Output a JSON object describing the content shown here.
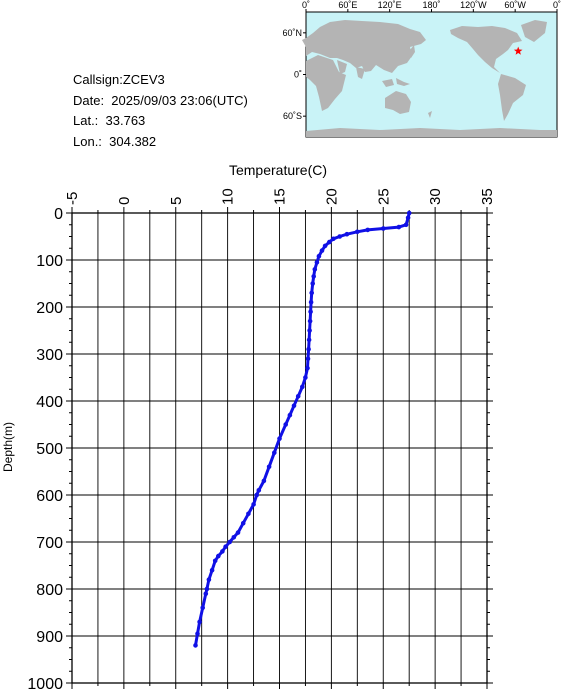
{
  "info": {
    "callsign": "Callsign:ZCEV3",
    "date": "Date:  2025/09/03 23:06(UTC)",
    "lat": "Lat.:  33.763",
    "lon": "Lon.:  304.382"
  },
  "map": {
    "top_ticks": [
      "0˚",
      "60˚E",
      "120˚E",
      "180˚",
      "120˚W",
      "60˚W",
      "0˚"
    ],
    "left_ticks": [
      "60˚N",
      "0˚",
      "60˚S"
    ],
    "ocean_color": "#c9f3f7",
    "land_color": "#b4b4b4",
    "marker_color": "#ff0000",
    "marker": {
      "lat": 33.763,
      "lon": 304.382
    }
  },
  "chart_data": {
    "type": "line",
    "xlabel": "Temperature(C)",
    "ylabel": "Depth(m)",
    "xlim": [
      -5,
      35
    ],
    "ylim": [
      1000,
      0
    ],
    "x_ticks": [
      "-5",
      "0",
      "5",
      "10",
      "15",
      "20",
      "25",
      "30",
      "35"
    ],
    "y_ticks": [
      "0",
      "100",
      "200",
      "300",
      "400",
      "500",
      "600",
      "700",
      "800",
      "900",
      "1000"
    ],
    "grid": true,
    "series_color": "#1010e6",
    "series": [
      {
        "x": [
          27.5,
          27.4,
          27.2,
          26.5,
          25.0,
          23.5,
          22.5,
          21.5,
          20.8,
          20.2,
          19.8,
          19.4,
          19.1,
          18.8,
          18.6,
          18.4,
          18.3,
          18.2,
          18.1,
          18.05,
          18.0,
          17.95,
          17.9,
          17.85,
          17.8,
          17.75,
          17.7,
          17.5,
          17.2,
          16.8,
          16.4,
          16.0,
          15.6,
          15.0,
          14.5,
          14.0,
          13.5,
          13.0,
          12.8,
          12.5,
          12.0,
          11.5,
          11.0,
          10.6,
          10.2,
          9.8,
          9.5,
          9.1,
          8.8,
          8.5,
          8.2,
          8.0,
          7.9,
          7.6,
          7.3,
          7.1,
          6.9
        ],
        "y": [
          0,
          10,
          25,
          30,
          33,
          36,
          40,
          45,
          50,
          55,
          62,
          70,
          80,
          92,
          105,
          120,
          135,
          150,
          170,
          190,
          210,
          230,
          250,
          270,
          290,
          310,
          330,
          350,
          370,
          390,
          410,
          430,
          450,
          480,
          510,
          540,
          570,
          590,
          600,
          620,
          640,
          660,
          680,
          690,
          700,
          710,
          720,
          730,
          740,
          760,
          780,
          800,
          810,
          840,
          870,
          895,
          920
        ]
      }
    ]
  }
}
